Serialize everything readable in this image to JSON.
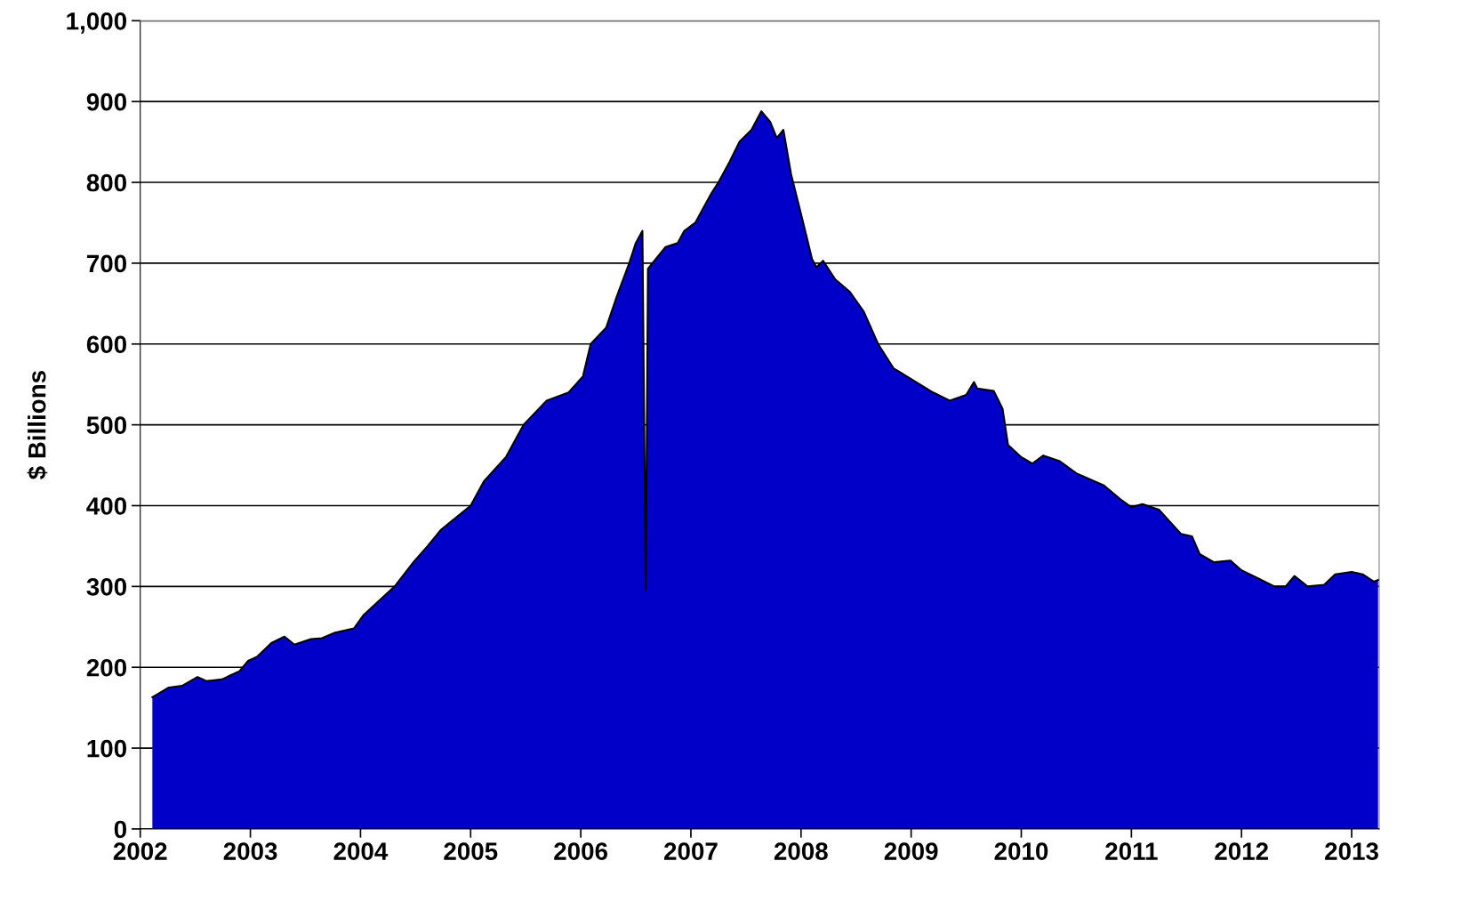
{
  "chart_data": {
    "type": "area",
    "ylabel": "$ Billions",
    "x": [
      2002.11,
      2002.26,
      2002.38,
      2002.52,
      2002.6,
      2002.74,
      2002.9,
      2002.98,
      2003.06,
      2003.19,
      2003.31,
      2003.4,
      2003.55,
      2003.65,
      2003.77,
      2003.94,
      2004.03,
      2004.15,
      2004.31,
      2004.48,
      2004.61,
      2004.73,
      2005.0,
      2005.12,
      2005.32,
      2005.48,
      2005.69,
      2005.89,
      2006.02,
      2006.09,
      2006.23,
      2006.33,
      2006.44,
      2006.5,
      2006.56,
      2006.59,
      2006.61,
      2006.77,
      2006.88,
      2006.94,
      2007.04,
      2007.1,
      2007.18,
      2007.25,
      2007.35,
      2007.44,
      2007.55,
      2007.64,
      2007.72,
      2007.78,
      2007.84,
      2007.91,
      2008.02,
      2008.1,
      2008.14,
      2008.2,
      2008.31,
      2008.44,
      2008.57,
      2008.7,
      2008.84,
      2008.96,
      2009.2,
      2009.35,
      2009.5,
      2009.57,
      2009.6,
      2009.75,
      2009.83,
      2009.88,
      2010.0,
      2010.1,
      2010.2,
      2010.35,
      2010.5,
      2010.75,
      2010.9,
      2011.0,
      2011.1,
      2011.25,
      2011.35,
      2011.45,
      2011.55,
      2011.62,
      2011.75,
      2011.9,
      2012.0,
      2012.15,
      2012.3,
      2012.4,
      2012.48,
      2012.6,
      2012.75,
      2012.85,
      2013.0,
      2013.1,
      2013.2,
      2013.24
    ],
    "series": [
      {
        "color": "#0000c8",
        "values": [
          163,
          175,
          177,
          188,
          183,
          185,
          195,
          208,
          213,
          230,
          238,
          228,
          235,
          236,
          243,
          248,
          265,
          280,
          300,
          330,
          350,
          370,
          400,
          430,
          460,
          500,
          530,
          540,
          560,
          600,
          620,
          660,
          700,
          725,
          740,
          296,
          693,
          720,
          725,
          740,
          750,
          765,
          785,
          800,
          825,
          850,
          865,
          888,
          875,
          855,
          865,
          810,
          750,
          705,
          695,
          703,
          680,
          665,
          640,
          600,
          570,
          560,
          540,
          530,
          537,
          553,
          545,
          542,
          520,
          475,
          460,
          452,
          462,
          455,
          440,
          425,
          408,
          398,
          402,
          395,
          380,
          365,
          362,
          340,
          330,
          332,
          320,
          310,
          300,
          300,
          313,
          300,
          302,
          315,
          318,
          315,
          306,
          308
        ]
      }
    ],
    "xlim": [
      2002,
      2013.25
    ],
    "xticks": [
      2002,
      2003,
      2004,
      2005,
      2006,
      2007,
      2008,
      2009,
      2010,
      2011,
      2012,
      2013
    ],
    "ylim": [
      0,
      1000
    ],
    "yticks": [
      0,
      100,
      200,
      300,
      400,
      500,
      600,
      700,
      800,
      900,
      {
        "value": 1000,
        "label": "1,000"
      }
    ],
    "grid": "y",
    "legend": false
  }
}
